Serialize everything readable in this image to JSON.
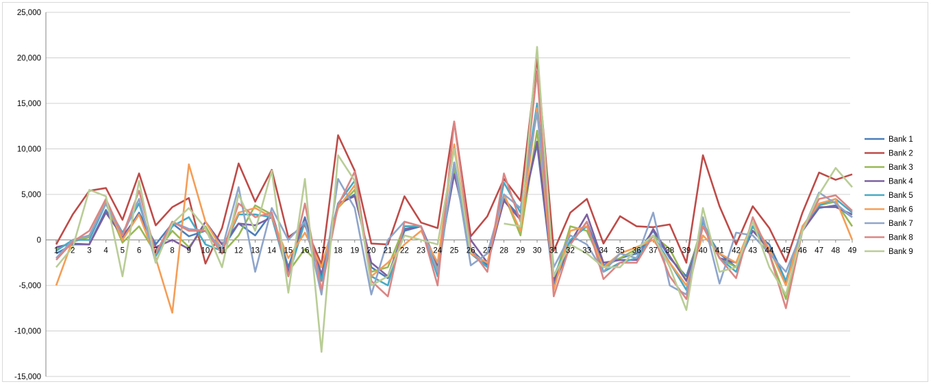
{
  "chart_data": {
    "type": "line",
    "title": "",
    "xlabel": "",
    "ylabel": "",
    "ylim": [
      -15000,
      25000
    ],
    "yticks": [
      25000,
      20000,
      15000,
      10000,
      5000,
      0,
      -5000,
      -10000,
      -15000
    ],
    "ytick_labels": [
      "25,000",
      "20,000",
      "15,000",
      "10,000",
      "5,000",
      "0",
      "-5,000",
      "-10,000",
      "-15,000"
    ],
    "grid": true,
    "legend_position": "right",
    "categories": [
      "1",
      "2",
      "3",
      "4",
      "5",
      "6",
      "7",
      "8",
      "9",
      "10",
      "11",
      "12",
      "13",
      "14",
      "15",
      "16",
      "17",
      "18",
      "19",
      "20",
      "21",
      "22",
      "23",
      "24",
      "25",
      "26",
      "27",
      "28",
      "29",
      "30",
      "31",
      "32",
      "33",
      "34",
      "35",
      "36",
      "37",
      "38",
      "39",
      "40",
      "41",
      "42",
      "43",
      "44",
      "45",
      "46",
      "47",
      "48",
      "49"
    ],
    "series": [
      {
        "name": "Bank 1",
        "color": "#4a7ebb",
        "values": [
          -1500,
          -500,
          -500,
          3300,
          200,
          3000,
          -500,
          1800,
          400,
          1000,
          -1000,
          1800,
          500,
          3000,
          -3000,
          2500,
          -4000,
          3800,
          5000,
          -3000,
          -4200,
          1000,
          1500,
          -3000,
          7500,
          -1000,
          -2800,
          4500,
          2500,
          10500,
          -5000,
          -500,
          2000,
          -2800,
          -2000,
          -1500,
          1000,
          -2000,
          -4000,
          1500,
          -1500,
          -3000,
          1000,
          -500,
          -4500,
          1000,
          3500,
          3800,
          2500
        ]
      },
      {
        "name": "Bank 2",
        "color": "#be4b48",
        "values": [
          -500,
          2800,
          5400,
          5700,
          2200,
          7300,
          1600,
          3600,
          4600,
          -2600,
          1300,
          8400,
          4200,
          7700,
          300,
          1600,
          -2700,
          11500,
          7600,
          -400,
          -500,
          4800,
          1900,
          1300,
          13000,
          400,
          2600,
          6700,
          4300,
          20000,
          -1200,
          3000,
          4500,
          -400,
          2600,
          1500,
          1400,
          1700,
          -2500,
          9300,
          3700,
          -500,
          3700,
          1300,
          -2400,
          3000,
          7400,
          6600,
          7200
        ]
      },
      {
        "name": "Bank 3",
        "color": "#98b954",
        "values": [
          -1000,
          -200,
          300,
          4000,
          -300,
          1500,
          -1500,
          1000,
          -800,
          1500,
          -1500,
          500,
          3800,
          2800,
          -3500,
          -1000,
          -3000,
          3500,
          5500,
          -3500,
          -3000,
          1500,
          1500,
          -3000,
          8000,
          -1500,
          -2500,
          5000,
          500,
          12000,
          -4500,
          1500,
          1000,
          -3000,
          -2000,
          -1000,
          500,
          -1000,
          -4500,
          2000,
          -2000,
          -3000,
          1500,
          -1500,
          -6500,
          1500,
          3800,
          4200,
          1500
        ]
      },
      {
        "name": "Bank 4",
        "color": "#7d60a0",
        "values": [
          -800,
          -400,
          -500,
          3000,
          400,
          2800,
          -800,
          0,
          -1000,
          2000,
          -500,
          1800,
          1600,
          2500,
          -3500,
          2200,
          -3800,
          4000,
          4800,
          -2500,
          -4000,
          1200,
          1500,
          -2800,
          7200,
          0,
          -2500,
          4300,
          2200,
          10800,
          -4500,
          -300,
          2800,
          -2500,
          -2200,
          -2200,
          1200,
          -1800,
          -4500,
          1500,
          -2000,
          -2500,
          1000,
          -1000,
          -4800,
          1000,
          3600,
          3600,
          2800
        ]
      },
      {
        "name": "Bank 5",
        "color": "#46aac5",
        "values": [
          -1200,
          0,
          0,
          4000,
          800,
          4000,
          -1800,
          1500,
          2500,
          -500,
          -1200,
          2800,
          2800,
          2500,
          -4000,
          2000,
          -4500,
          4000,
          6500,
          -4000,
          -5000,
          1500,
          1500,
          -4000,
          8500,
          -1500,
          -3000,
          6300,
          3000,
          15000,
          -4000,
          0,
          1500,
          -3500,
          -2500,
          -2000,
          500,
          -2500,
          -5500,
          2000,
          -2000,
          -3500,
          1500,
          -1000,
          -4500,
          1500,
          3800,
          4500,
          3000
        ]
      },
      {
        "name": "Bank 6",
        "color": "#f59d56",
        "values": [
          -5000,
          0,
          500,
          4200,
          0,
          2800,
          -2000,
          -8000,
          8300,
          2000,
          -1000,
          3000,
          3500,
          2500,
          -2000,
          800,
          -3000,
          3500,
          6000,
          -4000,
          -2500,
          -500,
          1000,
          -2500,
          10500,
          -1500,
          -2500,
          5000,
          1000,
          14500,
          -5500,
          1000,
          1500,
          -3000,
          -1500,
          -800,
          0,
          -2500,
          -5000,
          500,
          -1500,
          -2500,
          2000,
          -1000,
          -5000,
          1500,
          4000,
          4500,
          0
        ]
      },
      {
        "name": "Bank 7",
        "color": "#8ea5cb",
        "values": [
          -2000,
          0,
          500,
          4000,
          500,
          4500,
          -2500,
          2000,
          1200,
          1000,
          -1000,
          5800,
          -3500,
          3500,
          0,
          2000,
          -6000,
          6700,
          3500,
          -6000,
          0,
          2000,
          1500,
          -3500,
          8500,
          -2800,
          -1500,
          5000,
          3500,
          14000,
          -3000,
          500,
          -500,
          -3500,
          -1500,
          -2000,
          3000,
          -5000,
          -6000,
          2500,
          -4800,
          800,
          500,
          -1500,
          -3500,
          1000,
          5200,
          4000,
          2500
        ]
      },
      {
        "name": "Bank 8",
        "color": "#db8684",
        "values": [
          -2200,
          -200,
          1000,
          4500,
          500,
          5400,
          -1500,
          2000,
          1000,
          1000,
          -1500,
          4000,
          2500,
          3000,
          -4000,
          4000,
          -5500,
          3800,
          7500,
          -4500,
          -6200,
          2000,
          1500,
          -5000,
          13000,
          -1000,
          -3500,
          7300,
          2000,
          18500,
          -6200,
          -500,
          2000,
          -4300,
          -2500,
          -2500,
          500,
          -4000,
          -6500,
          1500,
          -2000,
          -4200,
          2500,
          -1500,
          -7500,
          1000,
          4500,
          4900,
          3200
        ]
      },
      {
        "name": "Bank 9",
        "color": "#b9cd96",
        "values": [
          -3000,
          -800,
          5500,
          4800,
          -4000,
          6500,
          -2500,
          1800,
          3500,
          1300,
          -3000,
          5000,
          1000,
          7600,
          -5800,
          6700,
          -12300,
          9300,
          6500,
          -5000,
          -4000,
          500,
          0,
          -500,
          10000,
          -1500,
          null,
          1800,
          1500,
          21200,
          -4000,
          -500,
          -1500,
          -3000,
          -3000,
          -1000,
          500,
          -3000,
          -7700,
          3500,
          -3500,
          -3000,
          2000,
          -3000,
          -6000,
          1000,
          5000,
          7900,
          5800
        ]
      }
    ]
  }
}
